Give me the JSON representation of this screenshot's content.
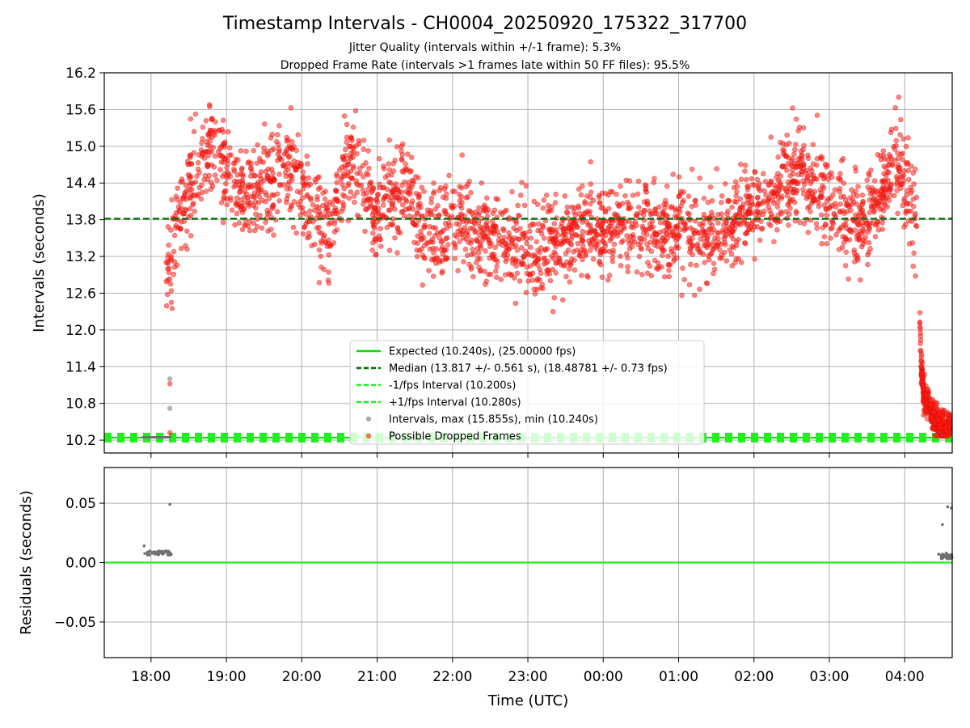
{
  "figure": {
    "title": "Timestamp Intervals - CH0004_20250920_175322_317700",
    "subtitle_line1": "Jitter Quality (intervals within +/-1 frame): 5.3%",
    "subtitle_line2": "Dropped Frame Rate (intervals >1 frames late within 50 FF files): 95.5%"
  },
  "chart_data": [
    {
      "type": "scatter",
      "panel": "intervals",
      "ylabel": "Intervals (seconds)",
      "xlabel": "",
      "ylim": [
        9.99,
        16.2
      ],
      "yticks": [
        "10.2",
        "10.8",
        "11.4",
        "12.0",
        "12.6",
        "13.2",
        "13.8",
        "14.4",
        "15.0",
        "15.6",
        "16.2"
      ],
      "xlim": [
        17.38,
        28.63
      ],
      "grid": true,
      "legend_position": "lower center",
      "legend": [
        {
          "label": "Expected (10.240s), (25.00000 fps)",
          "style": "solid-line",
          "color": "#00e000"
        },
        {
          "label": "Median (13.817 +/- 0.561 s), (18.48781 +/- 0.73 fps)",
          "style": "dashed-line",
          "color": "#007000"
        },
        {
          "label": "-1/fps Interval (10.200s)",
          "style": "dashed-line",
          "color": "#22ee22"
        },
        {
          "label": "+1/fps Interval (10.280s)",
          "style": "dashed-line",
          "color": "#22ee22"
        },
        {
          "label": "Intervals, max (15.855s), min (10.240s)",
          "style": "marker",
          "color": "#808080"
        },
        {
          "label": "Possible Dropped Frames",
          "style": "marker",
          "color": "#ff2a00"
        }
      ],
      "reference_lines": {
        "expected": 10.24,
        "median": 13.817,
        "minus_one_frame": 10.2,
        "plus_one_frame": 10.28
      },
      "trend": {
        "x": [
          18.2,
          18.27,
          18.35,
          18.45,
          18.6,
          18.8,
          19.0,
          19.2,
          19.5,
          19.8,
          20.0,
          20.2,
          20.4,
          20.6,
          20.8,
          21.0,
          21.2,
          21.4,
          21.6,
          21.8,
          22.0,
          22.2,
          22.4,
          22.6,
          22.8,
          23.0,
          23.2,
          23.4,
          23.6,
          23.8,
          24.0,
          24.2,
          24.4,
          24.6,
          24.8,
          25.0,
          25.2,
          25.4,
          25.6,
          25.8,
          26.0,
          26.2,
          26.4,
          26.6,
          26.8,
          27.0,
          27.2,
          27.4,
          27.6,
          27.8,
          27.9,
          28.0,
          28.1,
          28.16
        ],
        "y": [
          12.7,
          13.4,
          13.9,
          14.2,
          14.6,
          14.95,
          14.5,
          14.1,
          14.3,
          14.6,
          14.4,
          13.8,
          13.7,
          14.7,
          14.5,
          13.9,
          14.3,
          14.4,
          13.5,
          13.6,
          13.7,
          13.65,
          13.55,
          13.5,
          13.4,
          13.3,
          13.3,
          13.4,
          13.5,
          13.6,
          13.7,
          13.7,
          13.6,
          13.7,
          13.6,
          13.7,
          13.6,
          13.5,
          13.6,
          13.8,
          13.95,
          14.0,
          14.5,
          14.6,
          14.3,
          14.0,
          13.9,
          13.7,
          14.0,
          14.5,
          14.8,
          14.5,
          14.0,
          13.6
        ]
      },
      "spread": 0.38,
      "early_grey_segment": {
        "x": [
          17.88,
          18.27
        ],
        "y": 10.248
      },
      "early_points": [
        {
          "x": 18.27,
          "y": 12.45
        },
        {
          "x": 18.28,
          "y": 12.35
        },
        {
          "x": 18.26,
          "y": 12.75
        },
        {
          "x": 18.27,
          "y": 13.2
        },
        {
          "x": 18.25,
          "y": 11.2
        },
        {
          "x": 18.25,
          "y": 11.12
        },
        {
          "x": 18.25,
          "y": 10.72
        },
        {
          "x": 18.25,
          "y": 10.32
        }
      ],
      "tail": {
        "x": [
          28.2,
          28.22,
          28.25,
          28.3,
          28.35,
          28.4,
          28.5,
          28.6
        ],
        "y": [
          12.2,
          11.4,
          10.95,
          10.8,
          10.65,
          10.55,
          10.45,
          10.4
        ]
      }
    },
    {
      "type": "scatter",
      "panel": "residuals",
      "ylabel": "Residuals (seconds)",
      "xlabel": "Time (UTC)",
      "ylim": [
        -0.08,
        0.08
      ],
      "yticks": [
        "−0.05",
        "0.00",
        "0.05"
      ],
      "xticks": [
        "18:00",
        "19:00",
        "20:00",
        "21:00",
        "22:00",
        "23:00",
        "00:00",
        "01:00",
        "02:00",
        "03:00",
        "04:00"
      ],
      "xlim": [
        17.38,
        28.63
      ],
      "grid": true,
      "zero_line_color": "#22ee22",
      "points": [
        {
          "x": 17.91,
          "y": 0.014
        },
        {
          "x": 18.25,
          "y": 0.049
        },
        {
          "x": 28.57,
          "y": 0.047
        },
        {
          "x": 28.62,
          "y": 0.046
        },
        {
          "x": 28.5,
          "y": 0.032
        },
        {
          "x": 28.45,
          "y": 0.007
        },
        {
          "x": 28.5,
          "y": 0.007
        },
        {
          "x": 28.55,
          "y": 0.008
        }
      ],
      "clusters": [
        {
          "x_from": 17.91,
          "x_to": 18.27,
          "y": 0.008
        },
        {
          "x_from": 28.48,
          "x_to": 28.63,
          "y": 0.005
        }
      ]
    }
  ]
}
